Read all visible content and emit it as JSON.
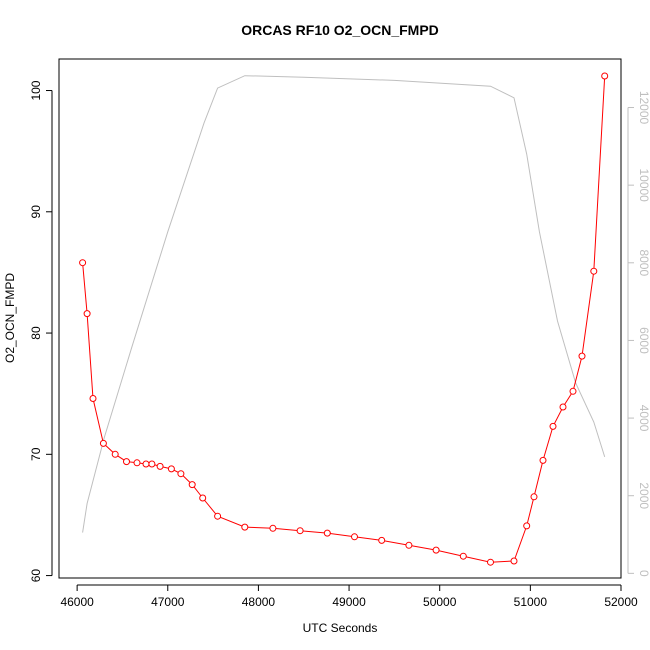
{
  "chart_data": {
    "type": "line",
    "title": "ORCAS RF10 O2_OCN_FMPD",
    "xlabel": "UTC Seconds",
    "ylabel": "O2_OCN_FMPD",
    "xlim": [
      45800,
      52000
    ],
    "ylim": [
      59.8,
      102.6
    ],
    "y2lim": [
      -120,
      13250
    ],
    "x_ticks": [
      "46000",
      "47000",
      "48000",
      "49000",
      "50000",
      "51000",
      "52000"
    ],
    "y_ticks": [
      "60",
      "70",
      "80",
      "90",
      "100"
    ],
    "y2_ticks": [
      "0",
      "2000",
      "4000",
      "6000",
      "8000",
      "10000",
      "12000"
    ],
    "grid": false,
    "series": [
      {
        "color": "#ff0000",
        "marker": "open-circle",
        "x": [
          46060,
          46110,
          46175,
          46290,
          46420,
          46545,
          46660,
          46760,
          46825,
          46915,
          47040,
          47145,
          47270,
          47385,
          47550,
          47850,
          48160,
          48460,
          48760,
          49060,
          49360,
          49660,
          49960,
          50260,
          50560,
          50820,
          50960,
          51040,
          51140,
          51250,
          51360,
          51470,
          51570,
          51700,
          51820
        ],
        "y": [
          85.8,
          81.6,
          74.6,
          70.9,
          70.0,
          69.4,
          69.3,
          69.2,
          69.2,
          69.0,
          68.8,
          68.4,
          67.5,
          66.4,
          64.9,
          64.0,
          63.9,
          63.7,
          63.5,
          63.2,
          62.9,
          62.5,
          62.1,
          61.6,
          61.1,
          61.2,
          64.1,
          66.5,
          69.5,
          72.3,
          73.9,
          75.2,
          78.1,
          85.1,
          101.2
        ]
      },
      {
        "color": "#bfbfbf",
        "axis": "right",
        "x": [
          46060,
          46110,
          46300,
          46600,
          47000,
          47400,
          47550,
          47850,
          48500,
          49500,
          50560,
          50820,
          50960,
          51100,
          51300,
          51500,
          51700,
          51820
        ],
        "y": [
          1050,
          1800,
          3500,
          5800,
          8800,
          11600,
          12500,
          12820,
          12780,
          12700,
          12550,
          12250,
          10800,
          8800,
          6500,
          4900,
          3900,
          3000
        ]
      }
    ]
  }
}
